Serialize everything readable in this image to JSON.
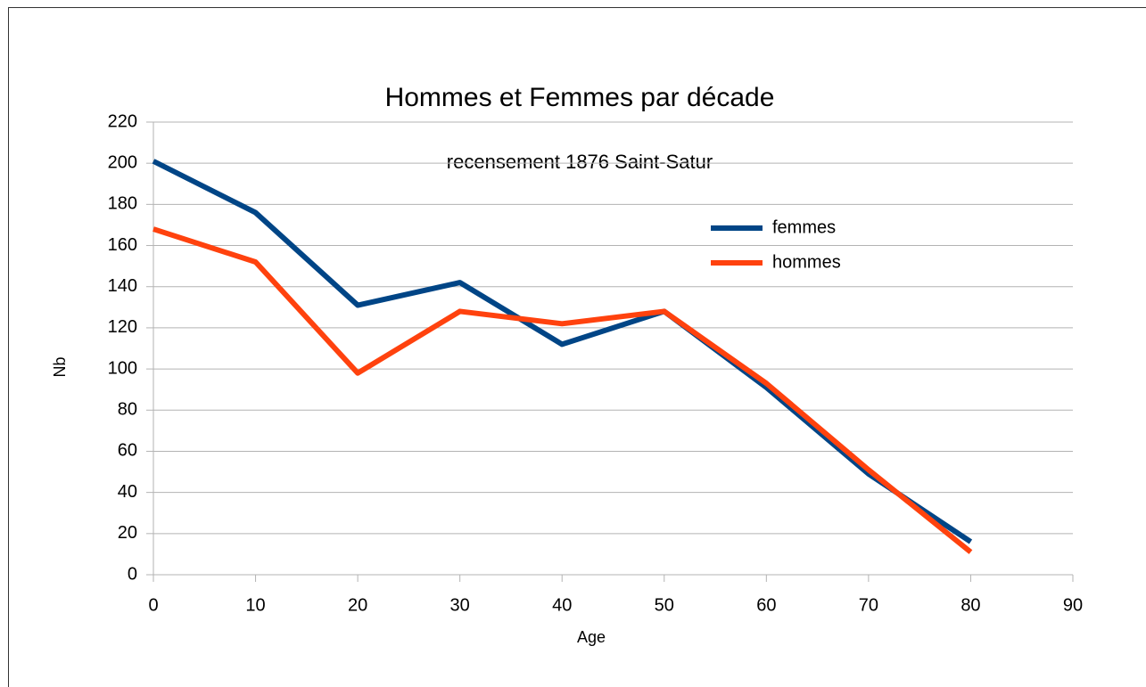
{
  "chart_data": {
    "type": "line",
    "title": "Hommes et Femmes par décade",
    "subtitle": "recensement 1876 Saint-Satur",
    "x_label": "Age",
    "y_label": "Nb",
    "x": [
      0,
      10,
      20,
      30,
      40,
      50,
      60,
      70,
      80
    ],
    "series": [
      {
        "name": "femmes",
        "color": "#004586",
        "values": [
          201,
          176,
          131,
          142,
          112,
          128,
          91,
          49,
          16
        ]
      },
      {
        "name": "hommes",
        "color": "#ff420e",
        "values": [
          168,
          152,
          98,
          128,
          122,
          128,
          93,
          51,
          11
        ]
      }
    ],
    "xlim": [
      0,
      90
    ],
    "xticks": [
      0,
      10,
      20,
      30,
      40,
      50,
      60,
      70,
      80,
      90
    ],
    "ylim": [
      0,
      220
    ],
    "yticks": [
      0,
      20,
      40,
      60,
      80,
      100,
      120,
      140,
      160,
      180,
      200,
      220
    ],
    "grid": true,
    "legend": "upper right"
  }
}
